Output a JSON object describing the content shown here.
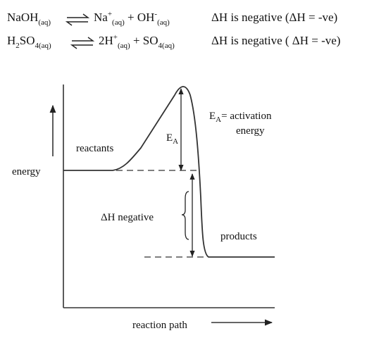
{
  "equations": [
    {
      "left": [
        {
          "text": "NaOH",
          "pos": "base"
        },
        {
          "text": "(aq)",
          "pos": "sub"
        }
      ],
      "right": [
        {
          "text": "Na",
          "pos": "base"
        },
        {
          "text": "+",
          "pos": "sup"
        },
        {
          "text": "(aq)",
          "pos": "sub"
        },
        {
          "text": " + OH",
          "pos": "base"
        },
        {
          "text": "-",
          "pos": "sup"
        },
        {
          "text": "(aq)",
          "pos": "sub"
        }
      ],
      "note": "ΔH  is negative  (ΔH = -ve)"
    },
    {
      "left": [
        {
          "text": "H",
          "pos": "base"
        },
        {
          "text": "2",
          "pos": "sub"
        },
        {
          "text": "SO",
          "pos": "base"
        },
        {
          "text": "4(aq)",
          "pos": "sub"
        }
      ],
      "right": [
        {
          "text": "2H",
          "pos": "base"
        },
        {
          "text": "+",
          "pos": "sup"
        },
        {
          "text": "(aq)",
          "pos": "sub"
        },
        {
          "text": " + SO",
          "pos": "base"
        },
        {
          "text": "4(aq)",
          "pos": "sub"
        }
      ],
      "note": "ΔH  is negative ( ΔH = -ve)"
    }
  ],
  "diagram": {
    "y_axis_label": "energy",
    "x_axis_label": "reaction path",
    "reactants_label": "reactants",
    "products_label": "products",
    "delta_h_label": "ΔH negative",
    "ea_marker": {
      "symbol": "E",
      "subscript": "A"
    },
    "ea_definition": {
      "symbol": "E",
      "subscript": "A",
      "line1": "= activation",
      "line2": "energy"
    }
  }
}
